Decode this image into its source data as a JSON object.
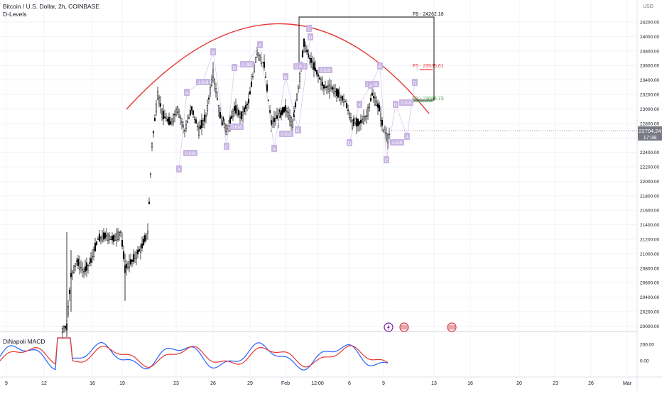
{
  "header": {
    "symbol_line": "Bitcoin / U.S. Dollar, 2h, COINBASE",
    "indicator": "D-Levels"
  },
  "subpane": {
    "indicator": "DiNapoli MACD",
    "ticks": [
      "200.00",
      "0.00"
    ]
  },
  "axis": {
    "currency": "USD",
    "price_ticks": [
      "24200.00",
      "24000.00",
      "23800.00",
      "23600.00",
      "23400.00",
      "23200.00",
      "23000.00",
      "22800.00",
      "22600.00",
      "22400.00",
      "22200.00",
      "22000.00",
      "21800.00",
      "21600.00",
      "21400.00",
      "21200.00",
      "21000.00",
      "20800.00",
      "20600.00",
      "20400.00",
      "20200.00",
      "20000.00"
    ],
    "current_price": "22704.24",
    "countdown": "17:38",
    "x_ticks": [
      "9",
      "12",
      "16",
      "19",
      "23",
      "26",
      "29",
      "Feb",
      "12:00",
      "6",
      "9",
      "13",
      "16",
      "20",
      "23",
      "26",
      "Mar"
    ]
  },
  "levels": {
    "f8": "F8 - 24262.18",
    "f5": "F5 - 23535.61",
    "f3": "F3 - 23086.73"
  },
  "pattern_labels": {
    "small": [
      "0.618",
      "1.618",
      "0.618",
      "0.382",
      "0.618",
      "0.382",
      "0.618",
      "0.618",
      "1.618",
      "0.618"
    ],
    "points": [
      "X",
      "A",
      "B",
      "C",
      "D",
      "X",
      "A",
      "B",
      "C",
      "D",
      "A",
      "B",
      "C",
      "D",
      "X",
      "A",
      "B",
      "C",
      "D",
      "A",
      "B",
      "C",
      "D"
    ]
  },
  "colors": {
    "arc": "#e53935",
    "f8_box": "#000000",
    "f5": "#e53935",
    "f3": "#43a047",
    "macd_fast": "#2962ff",
    "macd_slow": "#e53935",
    "labels": "#c9b6e4",
    "current_price_bg": "#787b86"
  },
  "event_icons": [
    "lightning-icon",
    "us-flag-icon",
    "us-flag-icon"
  ]
}
